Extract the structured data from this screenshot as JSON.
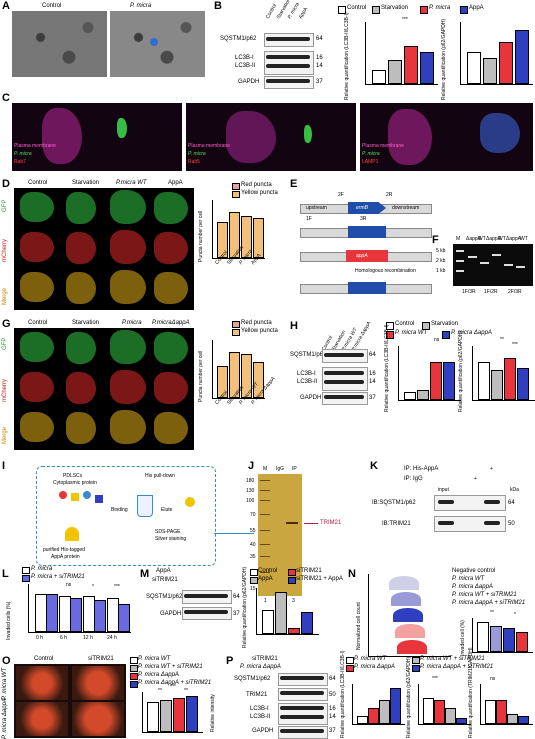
{
  "panels": {
    "A": {
      "letter": "A",
      "label_control": "Control",
      "label_pmicra": "P. micra"
    },
    "B": {
      "letter": "B",
      "lanes": [
        "Control",
        "Starvation",
        "P. micra",
        "AppA"
      ],
      "rows": [
        "SQSTM1/p62",
        "LC3B-I",
        "LC3B-II",
        "GAPDH"
      ],
      "kda": [
        "64",
        "16",
        "14",
        "37"
      ],
      "legend": [
        "Control",
        "Starvation",
        "P. micra",
        "AppA"
      ],
      "ylabel1": "Relative quantification (LC3B-II/LC3B-I)",
      "ylabel2": "Relative quantification (p62/GAPDH)",
      "sig": "***"
    },
    "C": {
      "letter": "C",
      "text1": "Plasma membrane",
      "text2": "P. micra",
      "text3": "Rab7",
      "text4": "Rab5",
      "text5": "LAMP1"
    },
    "D": {
      "letter": "D",
      "cols": [
        "Control",
        "Starvation",
        "P.micra WT",
        "AppA"
      ],
      "rows": [
        "GFP",
        "mCherry",
        "Merge"
      ],
      "legend": [
        "Red puncta",
        "Yellow puncta"
      ],
      "ylabel": "Puncta number per cell",
      "xcats": [
        "Control",
        "Starvation",
        "P. micra",
        "AppA"
      ]
    },
    "E": {
      "letter": "E",
      "upstream": "upstream",
      "gene": "ermB",
      "downstream": "downstream",
      "appa": "appA",
      "primers": [
        "1F",
        "2F",
        "3R",
        "2R"
      ],
      "recomb": "Homologous recombination"
    },
    "F": {
      "letter": "F",
      "lanes": [
        "M",
        "ΔappA",
        "WT",
        "ΔappA",
        "WT",
        "ΔappA",
        "WT"
      ],
      "markers": [
        "5 kb",
        "2 kb",
        "1 kb"
      ],
      "xlabels": [
        "1F/3R",
        "1F/2R",
        "2F/3R"
      ]
    },
    "G": {
      "letter": "G",
      "cols": [
        "Control",
        "Starvation",
        "P.micra",
        "P.micraΔappA"
      ],
      "rows": [
        "GFP",
        "mCherry",
        "Merge"
      ],
      "legend": [
        "Red puncta",
        "Yellow puncta"
      ],
      "ylabel": "Puncta number per cell",
      "xcats": [
        "Control",
        "Starvation",
        "P. micra WT",
        "P. micra ΔappA"
      ]
    },
    "H": {
      "letter": "H",
      "lanes": [
        "Control",
        "Starvation",
        "P.micra WT",
        "P.micra ΔappA"
      ],
      "rows": [
        "SQSTM1/p62",
        "LC3B-I",
        "LC3B-II",
        "GAPDH"
      ],
      "kda": [
        "64",
        "16",
        "14",
        "37"
      ],
      "legend": [
        "Control",
        "Starvation",
        "P. micra WT",
        "P. micra ΔappA"
      ],
      "ylabel1": "Relative quantification (LC3B-II/LC3B-I)",
      "ylabel2": "Relative quantification (p62/GAPDH)",
      "ns": "ns",
      "sig2": "**",
      "sig3": "***"
    },
    "I": {
      "letter": "I",
      "t1": "PDLSCs",
      "t2": "Cytoplasmic protein",
      "t3": "His pull-down",
      "t4": "Binding",
      "t5": "Elute",
      "t6": "SDS-PAGE",
      "t7": "Silver staining",
      "t8": "purified His-tagged",
      "t9": "AppA protein"
    },
    "J": {
      "letter": "J",
      "lanes": [
        "M",
        "IgG",
        "IP"
      ],
      "markers": [
        "180",
        "130",
        "100",
        "70",
        "55",
        "40",
        "35",
        "25",
        "15"
      ],
      "target": "TRIM21",
      "nums": [
        "1",
        "2",
        "3"
      ]
    },
    "K": {
      "letter": "K",
      "h1": "IP: His-AppA",
      "h2": "IP: IgG",
      "cols": [
        "input",
        "",
        "+"
      ],
      "kda": "kDa",
      "r1": "IB:SQSTM1/p62",
      "r2": "IB:TRIM21",
      "k1": "64",
      "k2": "50",
      "plus": "+",
      "minus": "-"
    },
    "L": {
      "letter": "L",
      "legend": [
        "P. micra",
        "P. micra + siTRIM21"
      ],
      "ylabel": "Invaded cells (%)",
      "x": [
        "0 h",
        "6 h",
        "12 h",
        "24 h"
      ],
      "sig": [
        "ns",
        "*",
        "***"
      ],
      "yticks": [
        "100",
        "80",
        "60",
        "40",
        "20",
        "0"
      ]
    },
    "M": {
      "letter": "M",
      "rows": [
        "AppA",
        "siTRIM21"
      ],
      "blot": [
        "SQSTM1/p62",
        "GAPDH"
      ],
      "kda": [
        "64",
        "37"
      ],
      "legend": [
        "Control",
        "siTRIM21",
        "AppA",
        "siTRIM21 + AppA"
      ],
      "ylabel": "Relative quantification (p62/GAPDH)"
    },
    "N": {
      "letter": "N",
      "legend": [
        "Negative control",
        "P. micra WT",
        "P. micra ΔappA",
        "P. micra WT + siTRIM21",
        "P. micra ΔappA + siTRIM21"
      ],
      "ylabel": "Normalized cell count",
      "ylabel2": "Invaded cell (%)",
      "sig": [
        "**",
        "*"
      ]
    },
    "O": {
      "letter": "O",
      "cols": [
        "Control",
        "siTRIM21"
      ],
      "rows": [
        "P. micra WT",
        "P. micra ΔappA"
      ],
      "legend": [
        "P. micra WT",
        "P. micra WT + siTRIM21",
        "P. micra ΔappA",
        "P. micra ΔappA + siTRIM21"
      ],
      "ylabel": "Relative intensity",
      "sig": [
        "***",
        "**",
        "**"
      ]
    },
    "P": {
      "letter": "P",
      "rows": [
        "siTRIM21",
        "P. micra ΔappA"
      ],
      "blot": [
        "SQSTM1/p62",
        "TRIM21",
        "LC3B-I",
        "LC3B-II",
        "GAPDH"
      ],
      "kda": [
        "64",
        "50",
        "16",
        "14",
        "37"
      ],
      "legend": [
        "P. micra WT",
        "P. micra ΔappA",
        "P. micra WT + siTRIM21",
        "P. micra ΔappA + siTRIM21"
      ],
      "ylabel1": "Relative quantification (LC3B-II/LC3B-I)",
      "ylabel2": "Relative quantification (p62/GAPDH)",
      "ylabel3": "Relative quantification (TRIM21/GAPDH)",
      "ns": "ns",
      "sig": "***"
    }
  },
  "colors": {
    "white": "#ffffff",
    "grey": "#bdbdbd",
    "red": "#e8353b",
    "blue": "#2f3fbf",
    "lightgrey": "#d9d9d9"
  }
}
